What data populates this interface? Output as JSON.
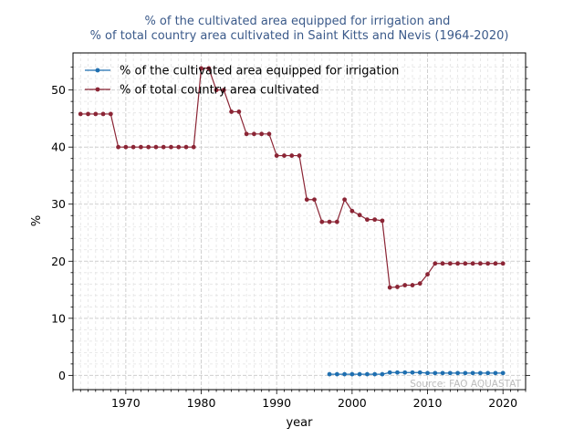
{
  "chart_data": {
    "type": "line",
    "title": "% of the cultivated area equipped for irrigation and\n% of total country area cultivated in Saint Kitts and Nevis (1964-2020)",
    "xlabel": "year",
    "ylabel": "%",
    "xlim": [
      1963.0,
      2023.0
    ],
    "ylim": [
      -2.5,
      56.5
    ],
    "xticks": [
      1970,
      1980,
      1990,
      2000,
      2010,
      2020
    ],
    "yticks": [
      0,
      10,
      20,
      30,
      40,
      50
    ],
    "grid": true,
    "legend_position": "top-left",
    "source_note": "Source: FAO AQUASTAT",
    "series": [
      {
        "name": "% of the cultivated area equipped for irrigation",
        "color": "#1f6fb0",
        "x": [
          1997,
          1998,
          1999,
          2000,
          2001,
          2002,
          2003,
          2004,
          2005,
          2006,
          2007,
          2008,
          2009,
          2010,
          2011,
          2012,
          2013,
          2014,
          2015,
          2016,
          2017,
          2018,
          2019,
          2020
        ],
        "values": [
          0.2,
          0.2,
          0.2,
          0.2,
          0.2,
          0.2,
          0.2,
          0.2,
          0.5,
          0.5,
          0.5,
          0.5,
          0.5,
          0.4,
          0.4,
          0.4,
          0.4,
          0.4,
          0.4,
          0.4,
          0.4,
          0.4,
          0.4,
          0.4
        ]
      },
      {
        "name": "% of total country area cultivated",
        "color": "#8b2535",
        "x": [
          1964,
          1965,
          1966,
          1967,
          1968,
          1969,
          1970,
          1971,
          1972,
          1973,
          1974,
          1975,
          1976,
          1977,
          1978,
          1979,
          1980,
          1981,
          1982,
          1983,
          1984,
          1985,
          1986,
          1987,
          1988,
          1989,
          1990,
          1991,
          1992,
          1993,
          1994,
          1995,
          1996,
          1997,
          1998,
          1999,
          2000,
          2001,
          2002,
          2003,
          2004,
          2005,
          2006,
          2007,
          2008,
          2009,
          2010,
          2011,
          2012,
          2013,
          2014,
          2015,
          2016,
          2017,
          2018,
          2019,
          2020
        ],
        "values": [
          45.8,
          45.8,
          45.8,
          45.8,
          45.8,
          40.0,
          40.0,
          40.0,
          40.0,
          40.0,
          40.0,
          40.0,
          40.0,
          40.0,
          40.0,
          40.0,
          53.8,
          53.8,
          50.0,
          50.0,
          46.2,
          46.2,
          42.3,
          42.3,
          42.3,
          42.3,
          38.5,
          38.5,
          38.5,
          38.5,
          30.8,
          30.8,
          26.9,
          26.9,
          26.9,
          30.8,
          28.8,
          28.1,
          27.3,
          27.3,
          27.1,
          15.4,
          15.5,
          15.8,
          15.8,
          16.1,
          17.7,
          19.6,
          19.6,
          19.6,
          19.6,
          19.6,
          19.6,
          19.6,
          19.6,
          19.6,
          19.6
        ]
      }
    ]
  }
}
